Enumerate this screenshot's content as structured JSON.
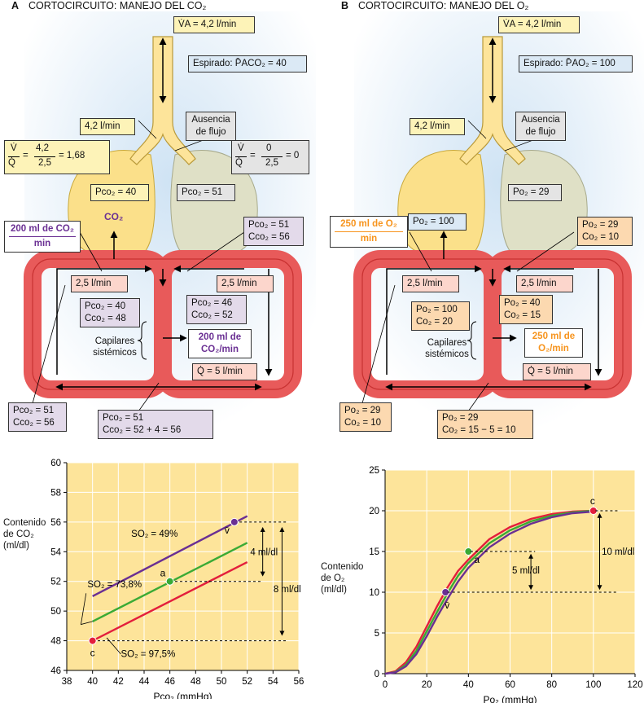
{
  "panelA": {
    "letter": "A",
    "title": "CORTOCIRCUITO: MANEJO DEL CO₂",
    "va": "V̇A = 4,2 l/min",
    "expired": "Espirado: P̄ACO₂ = 40",
    "flow_left": "4,2 l/min",
    "no_flow": [
      "Ausencia",
      "de flujo"
    ],
    "vq_left": [
      "V̇",
      "Q̇",
      "=",
      "4,2",
      "2,5",
      "= 1,68"
    ],
    "vq_right": [
      "V̇",
      "Q̇",
      "=",
      "0",
      "2,5",
      "= 0"
    ],
    "lung_left": "Pco₂ = 40",
    "lung_right": "Pco₂ = 51",
    "co2_label": "CO₂",
    "output": [
      "200 ml de CO₂",
      "min"
    ],
    "shunt": [
      "Pco₂ = 51",
      "Cco₂ = 56"
    ],
    "flow_a": "2,5 l/min",
    "flow_b": "2,5 l/min",
    "post_left": [
      "Pco₂ = 40",
      "Cco₂ = 48"
    ],
    "mixed": [
      "Pco₂ = 46",
      "Cco₂ = 52"
    ],
    "capillaries": [
      "Capilares",
      "sistémicos"
    ],
    "tissue": [
      "200 ml de",
      "CO₂/min"
    ],
    "q_total": "Q̇ = 5 l/min",
    "venous_left": [
      "Pco₂ = 51",
      "Cco₂ = 56"
    ],
    "venous_bottom": [
      "Pco₂ = 51",
      "Cco₂ = 52 + 4 = 56"
    ]
  },
  "panelB": {
    "letter": "B",
    "title": "CORTOCIRCUITO: MANEJO DEL O₂",
    "va": "V̇A = 4,2 l/min",
    "expired": "Espirado: P̄AO₂ = 100",
    "flow_left": "4,2 l/min",
    "no_flow": [
      "Ausencia",
      "de flujo"
    ],
    "lung_left": "Po₂ = 100",
    "lung_right": "Po₂ = 29",
    "output": [
      "250 ml de O₂",
      "min"
    ],
    "shunt": [
      "Po₂ = 29",
      "Co₂ = 10"
    ],
    "flow_a": "2,5 l/min",
    "flow_b": "2,5 l/min",
    "post_left": [
      "Po₂ = 100",
      "Co₂ = 20"
    ],
    "mixed": [
      "Po₂ = 40",
      "Co₂ = 15"
    ],
    "capillaries": [
      "Capilares",
      "sistémicos"
    ],
    "tissue": [
      "250 ml de",
      "O₂/min"
    ],
    "q_total": "Q̇ = 5 l/min",
    "venous_left": [
      "Po₂ = 29",
      "Co₂ = 10"
    ],
    "venous_bottom": [
      "Po₂ = 29",
      "Co₂ = 15 − 5 = 10"
    ]
  },
  "chart_data": [
    {
      "type": "line",
      "xlabel": "Pco₂ (mmHg)",
      "ylabel": [
        "Contenido",
        "de CO₂",
        "(ml/dl)"
      ],
      "xlim": [
        38,
        56
      ],
      "ylim": [
        46,
        60
      ],
      "xticks": [
        38,
        40,
        42,
        44,
        46,
        48,
        50,
        52,
        54,
        56
      ],
      "yticks": [
        46,
        48,
        50,
        52,
        54,
        56,
        58,
        60
      ],
      "series": [
        {
          "name": "SO₂ = 49%",
          "color": "#6a2f93",
          "x": [
            40,
            52
          ],
          "y": [
            51.0,
            56.4
          ]
        },
        {
          "name": "SO₂ = 73,8%",
          "color": "#3aaa35",
          "x": [
            40,
            52
          ],
          "y": [
            49.3,
            54.6
          ]
        },
        {
          "name": "SO₂ = 97,5%",
          "color": "#e31e3c",
          "x": [
            40,
            52
          ],
          "y": [
            48.0,
            53.3
          ]
        }
      ],
      "points": [
        {
          "label": "v̄",
          "x": 51,
          "y": 56,
          "color": "#6a2f93"
        },
        {
          "label": "a",
          "x": 46,
          "y": 52,
          "color": "#3aaa35"
        },
        {
          "label": "c",
          "x": 40,
          "y": 48,
          "color": "#e31e3c"
        }
      ],
      "annotations": [
        "4 ml/dl",
        "8 ml/dl"
      ]
    },
    {
      "type": "line",
      "xlabel": "Po₂ (mmHg)",
      "ylabel": [
        "Contenido",
        "de O₂",
        "(ml/dl)"
      ],
      "xlim": [
        0,
        120
      ],
      "ylim": [
        0,
        25
      ],
      "xticks": [
        0,
        20,
        40,
        60,
        80,
        100,
        120
      ],
      "yticks": [
        0,
        5,
        10,
        15,
        20,
        25
      ],
      "series": [
        {
          "color": "#e31e3c",
          "x": [
            0,
            5,
            10,
            15,
            20,
            25,
            30,
            35,
            40,
            50,
            60,
            70,
            80,
            90,
            100
          ],
          "y": [
            0,
            0.3,
            1.4,
            3.3,
            5.8,
            8.3,
            10.6,
            12.6,
            14.0,
            16.5,
            18.0,
            19.0,
            19.6,
            19.9,
            20.0
          ]
        },
        {
          "color": "#3aaa35",
          "x": [
            0,
            5,
            10,
            15,
            20,
            25,
            30,
            35,
            40,
            50,
            60,
            70,
            80,
            90,
            100
          ],
          "y": [
            0,
            0.2,
            1.1,
            2.8,
            5.2,
            7.6,
            9.9,
            12.0,
            13.6,
            16.0,
            17.6,
            18.7,
            19.4,
            19.8,
            20.0
          ]
        },
        {
          "color": "#6a2f93",
          "x": [
            0,
            5,
            10,
            15,
            20,
            25,
            30,
            35,
            40,
            50,
            60,
            70,
            80,
            90,
            100
          ],
          "y": [
            0,
            0.15,
            0.9,
            2.4,
            4.6,
            7.0,
            9.2,
            11.3,
            13.0,
            15.5,
            17.2,
            18.4,
            19.2,
            19.7,
            19.9
          ]
        }
      ],
      "points": [
        {
          "label": "c",
          "x": 100,
          "y": 20,
          "color": "#e31e3c"
        },
        {
          "label": "a",
          "x": 40,
          "y": 15,
          "color": "#3aaa35"
        },
        {
          "label": "v̄",
          "x": 29,
          "y": 10,
          "color": "#6a2f93"
        }
      ],
      "annotations": [
        "5 ml/dl",
        "10 ml/dl"
      ]
    }
  ]
}
